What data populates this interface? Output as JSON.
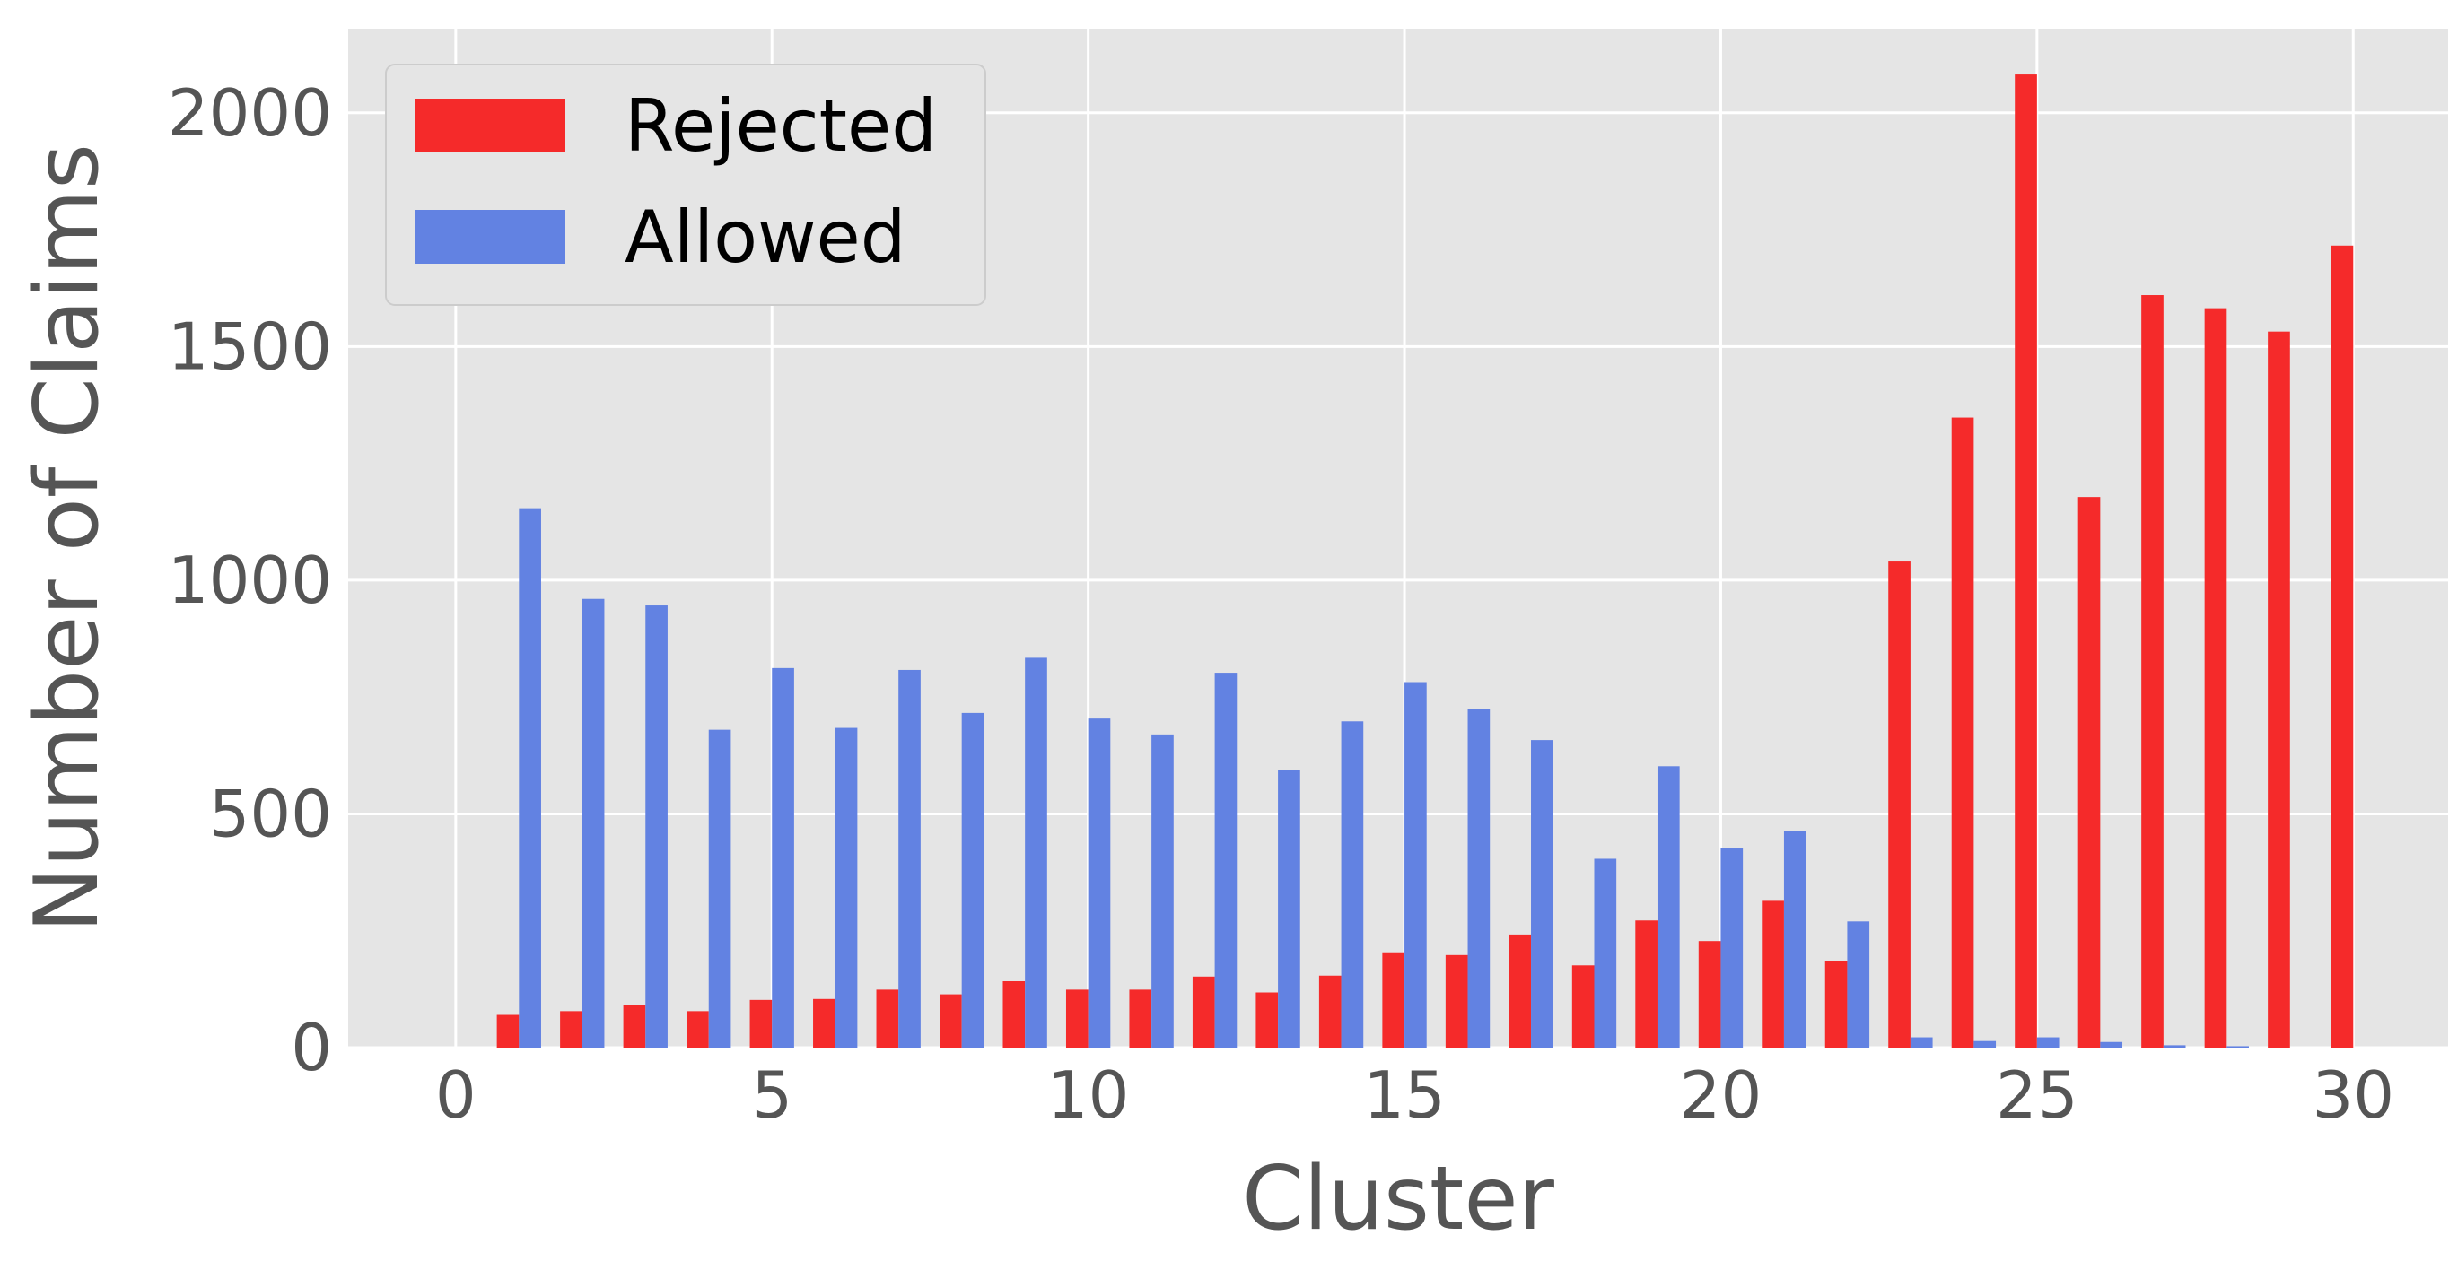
{
  "chart_data": {
    "type": "bar",
    "xlabel": "Cluster",
    "ylabel": "Number of Claims",
    "xlim": [
      -1.7,
      31.5
    ],
    "ylim": [
      0,
      2180
    ],
    "xticks": [
      0,
      5,
      10,
      15,
      20,
      25,
      30
    ],
    "yticks": [
      0,
      500,
      1000,
      1500,
      2000
    ],
    "grid": true,
    "background_color": "#e5e5e5",
    "grid_color": "#ffffff",
    "legend_position": "top-left",
    "x": [
      1,
      2,
      3,
      4,
      5,
      6,
      7,
      8,
      9,
      10,
      11,
      12,
      13,
      14,
      15,
      16,
      17,
      18,
      19,
      20,
      21,
      22,
      23,
      24,
      25,
      26,
      27,
      28,
      29,
      30
    ],
    "series": [
      {
        "name": "Rejected",
        "color": "#f52a2a",
        "values": [
          70,
          78,
          92,
          78,
          102,
          104,
          124,
          114,
          142,
          124,
          124,
          152,
          118,
          154,
          202,
          198,
          242,
          176,
          272,
          228,
          314,
          186,
          1040,
          1348,
          2082,
          1178,
          1610,
          1582,
          1532,
          1716
        ]
      },
      {
        "name": "Allowed",
        "color": "#6282e2",
        "values": [
          1154,
          960,
          946,
          680,
          812,
          684,
          808,
          716,
          834,
          704,
          670,
          802,
          594,
          698,
          782,
          724,
          658,
          404,
          602,
          426,
          464,
          270,
          22,
          14,
          22,
          12,
          5,
          3,
          0,
          0
        ]
      }
    ]
  }
}
